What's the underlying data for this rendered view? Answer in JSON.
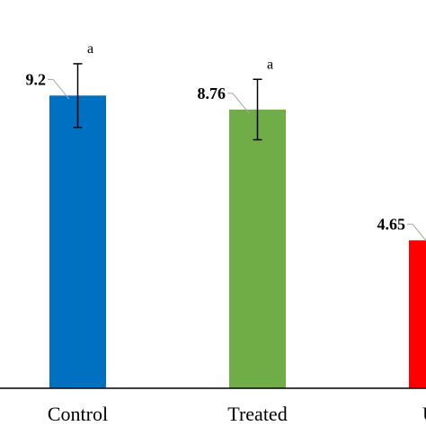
{
  "chart_data": {
    "type": "bar",
    "categories": [
      "Control",
      "Treated",
      "Unt"
    ],
    "values": [
      9.2,
      8.76,
      4.65
    ],
    "error_bars": [
      1.0,
      0.95,
      null
    ],
    "significance": [
      "a",
      "a",
      ""
    ],
    "data_labels": [
      "9.2",
      "8.76",
      "4.65"
    ],
    "colors": [
      "#0070C0",
      "#70AD47",
      "#FF0000"
    ],
    "title": "",
    "xlabel": "",
    "ylabel": "",
    "ylim": [
      0,
      12
    ],
    "grid": false,
    "legend": "none"
  }
}
